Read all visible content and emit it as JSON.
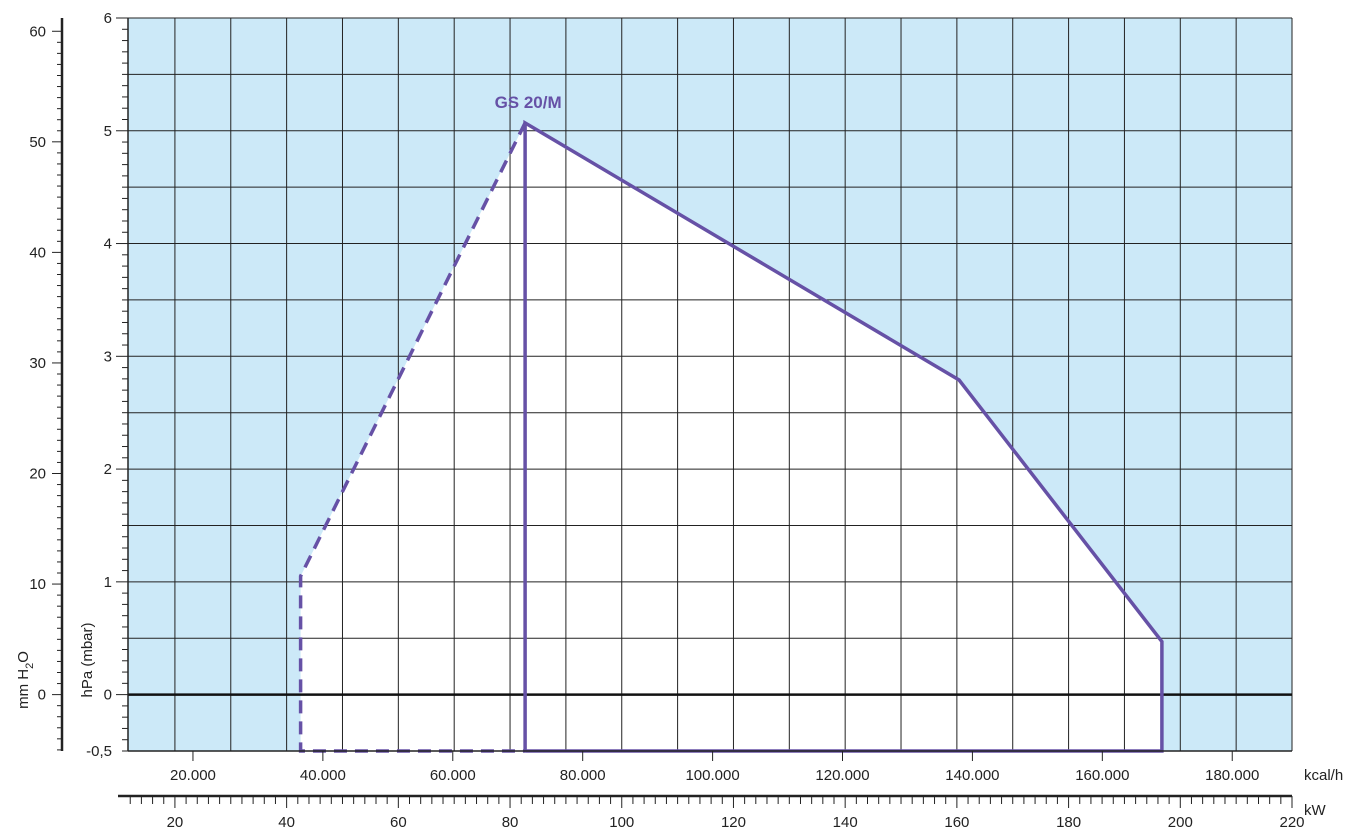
{
  "chart_data": {
    "type": "area",
    "series_label": "GS 20/M",
    "colors": {
      "background": "#ffffff",
      "working_area_outside": "#cce9f8",
      "working_area": "#ffffff",
      "curve": "#6651a6",
      "grid": "#222222",
      "zero_line": "#111111"
    },
    "x_axis_kcal": {
      "unit": "kcal/h",
      "range": [
        10000,
        189200
      ],
      "ticks": [
        20000,
        40000,
        60000,
        80000,
        100000,
        120000,
        140000,
        160000,
        180000
      ],
      "tick_labels": [
        "20.000",
        "40.000",
        "60.000",
        "80.000",
        "100.000",
        "120.000",
        "140.000",
        "160.000",
        "180.000"
      ]
    },
    "x_axis_kw": {
      "unit": "kW",
      "range": [
        11.6,
        220
      ],
      "ticks": [
        20,
        40,
        60,
        80,
        100,
        120,
        140,
        160,
        180,
        200,
        220
      ],
      "tick_labels": [
        "20",
        "40",
        "60",
        "80",
        "100",
        "120",
        "140",
        "160",
        "180",
        "200",
        "220"
      ]
    },
    "y_axis_hpa": {
      "label": "hPa (mbar)",
      "range": [
        -0.5,
        6
      ],
      "ticks": [
        -0.5,
        0,
        1,
        2,
        3,
        4,
        5,
        6
      ],
      "tick_labels": [
        "-0,5",
        "0",
        "1",
        "2",
        "3",
        "4",
        "5",
        "6"
      ]
    },
    "y_axis_mmh2o": {
      "label_prefix": "mm H",
      "label_sub": "2",
      "label_suffix": "O",
      "range": [
        -5.1,
        61.2
      ],
      "ticks": [
        0,
        10,
        20,
        30,
        40,
        50,
        60
      ],
      "tick_labels": [
        "0",
        "10",
        "20",
        "30",
        "40",
        "50",
        "60"
      ]
    },
    "working_area_kw_hpa": [
      {
        "x": 42.5,
        "y": -0.5
      },
      {
        "x": 42.5,
        "y": 1.05
      },
      {
        "x": 82.7,
        "y": 5.07
      },
      {
        "x": 160.4,
        "y": 2.79
      },
      {
        "x": 196.7,
        "y": 0.47
      },
      {
        "x": 196.7,
        "y": -0.5
      }
    ],
    "solid_curve_kw_hpa": [
      {
        "x": 82.7,
        "y": -0.5
      },
      {
        "x": 82.7,
        "y": 5.07
      },
      {
        "x": 160.4,
        "y": 2.79
      },
      {
        "x": 196.7,
        "y": 0.47
      },
      {
        "x": 196.7,
        "y": -0.5
      },
      {
        "x": 82.7,
        "y": -0.5
      }
    ],
    "dashed_curve_kw_hpa": [
      {
        "x": 82.7,
        "y": 5.07
      },
      {
        "x": 42.5,
        "y": 1.05
      },
      {
        "x": 42.5,
        "y": -0.5
      },
      {
        "x": 82.7,
        "y": -0.5
      }
    ],
    "grid": true
  }
}
